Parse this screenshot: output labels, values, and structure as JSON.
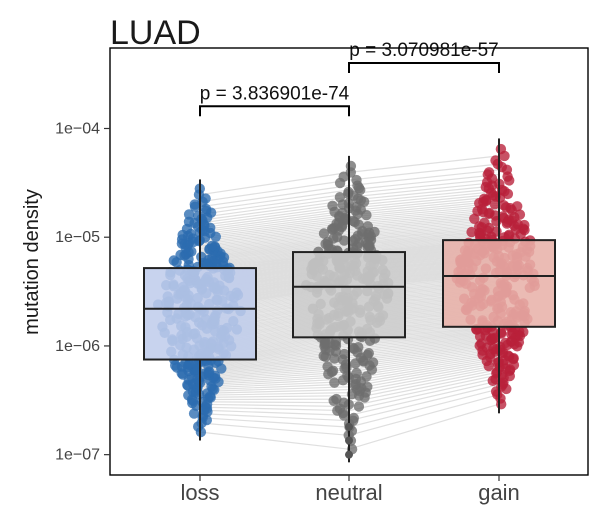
{
  "chart_data": {
    "type": "boxplot",
    "title": "LUAD",
    "xlabel": "",
    "ylabel": "mutation density",
    "y_scale": "log10",
    "ylim": [
      6.5e-08,
      0.00055
    ],
    "y_ticks": [
      {
        "value": 1e-07,
        "label": "1e−07"
      },
      {
        "value": 1e-06,
        "label": "1e−06"
      },
      {
        "value": 1e-05,
        "label": "1e−05"
      },
      {
        "value": 0.0001,
        "label": "1e−04"
      }
    ],
    "grid": false,
    "categories": [
      "loss",
      "neutral",
      "gain"
    ],
    "series": [
      {
        "category": "loss",
        "color": "#2b6cb0",
        "box_color": "#b6c4e8",
        "min": 1.35e-07,
        "q1": 7.5e-07,
        "median": 2.2e-06,
        "q3": 5.2e-06,
        "max": 3.4e-05
      },
      {
        "category": "neutral",
        "color": "#6e6e6e",
        "box_color": "#c4c4c4",
        "min": 8.5e-08,
        "q1": 1.2e-06,
        "median": 3.5e-06,
        "q3": 7.3e-06,
        "max": 5.6e-05
      },
      {
        "category": "gain",
        "color": "#b8203a",
        "box_color": "#e4a49b",
        "min": 2.4e-07,
        "q1": 1.5e-06,
        "median": 4.4e-06,
        "q3": 9.4e-06,
        "max": 8.1e-05
      }
    ],
    "comparisons": [
      {
        "from": "loss",
        "to": "neutral",
        "label": "p = 3.836901e-74",
        "y": 0.00016
      },
      {
        "from": "neutral",
        "to": "gain",
        "label": "p = 3.070981e-57",
        "y": 0.0004
      }
    ],
    "connector_color": "#d9d9d9"
  }
}
